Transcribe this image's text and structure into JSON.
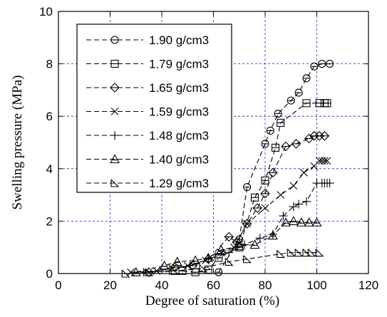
{
  "chart_data": {
    "type": "line",
    "title": "",
    "xlabel": "Degree of saturation (%)",
    "ylabel": "Swelling pressure (MPa)",
    "xlim": [
      0,
      120
    ],
    "ylim": [
      0,
      10
    ],
    "xticks": [
      "0",
      "20",
      "40",
      "60",
      "80",
      "100",
      "120"
    ],
    "yticks": [
      "0",
      "2",
      "4",
      "6",
      "8",
      "10"
    ],
    "grid": true,
    "legend_position": "top-left",
    "series": [
      {
        "name": "1.90 g/cm3",
        "marker": "circle",
        "x": [
          62,
          70,
          73,
          80,
          82,
          85,
          90,
          93,
          96,
          99,
          102,
          105
        ],
        "y": [
          0.05,
          1.3,
          3.3,
          4.95,
          5.45,
          6.1,
          6.6,
          6.9,
          7.45,
          7.9,
          8.0,
          8.0
        ]
      },
      {
        "name": "1.79 g/cm3",
        "marker": "square",
        "x": [
          48,
          53,
          58,
          62,
          70,
          76,
          80,
          84,
          86,
          96,
          101,
          103,
          104
        ],
        "y": [
          0.1,
          0.05,
          0.15,
          0.6,
          1.0,
          2.9,
          3.55,
          4.8,
          5.75,
          6.5,
          6.5,
          6.5,
          6.5
        ]
      },
      {
        "name": "1.65 g/cm3",
        "marker": "diamond",
        "x": [
          35,
          45,
          52,
          58,
          66,
          69,
          73,
          77,
          80,
          83,
          88,
          92,
          97,
          99,
          101,
          103
        ],
        "y": [
          0.05,
          0.25,
          0.3,
          0.55,
          1.4,
          1.2,
          1.9,
          2.5,
          3.05,
          3.85,
          4.85,
          4.95,
          5.15,
          5.25,
          5.25,
          5.25
        ]
      },
      {
        "name": "1.59 g/cm3",
        "marker": "x",
        "x": [
          28,
          38,
          44,
          50,
          57,
          63,
          68,
          73,
          80,
          86,
          91,
          95,
          99,
          101,
          102,
          103,
          104
        ],
        "y": [
          0.05,
          0.1,
          0.2,
          0.3,
          0.5,
          0.8,
          1.0,
          1.9,
          2.5,
          3.0,
          3.35,
          3.85,
          4.1,
          4.3,
          4.3,
          4.3,
          4.3
        ]
      },
      {
        "name": "1.48 g/cm3",
        "marker": "plus",
        "x": [
          33,
          43,
          51,
          58,
          66,
          72,
          78,
          83,
          87,
          91,
          93,
          96,
          100,
          102,
          103,
          104,
          105
        ],
        "y": [
          0.05,
          0.1,
          0.3,
          0.55,
          0.8,
          1.1,
          1.35,
          1.5,
          2.2,
          2.55,
          2.65,
          2.75,
          3.45,
          3.45,
          3.45,
          3.45,
          3.45
        ]
      },
      {
        "name": "1.40 g/cm3",
        "marker": "triangle",
        "x": [
          30,
          41,
          46,
          53,
          58,
          63,
          70,
          76,
          83,
          88,
          91,
          94,
          97,
          100
        ],
        "y": [
          0.05,
          0.3,
          0.45,
          0.5,
          0.6,
          0.9,
          1.05,
          1.1,
          1.45,
          1.95,
          2.0,
          1.95,
          1.95,
          1.95
        ]
      },
      {
        "name": "1.29 g/cm3",
        "marker": "wedge",
        "x": [
          26,
          35,
          45,
          56,
          66,
          73,
          86,
          90,
          93,
          96,
          98,
          101
        ],
        "y": [
          0.0,
          0.05,
          0.1,
          0.2,
          0.45,
          0.55,
          0.75,
          0.8,
          0.8,
          0.8,
          0.8,
          0.8
        ]
      }
    ]
  }
}
